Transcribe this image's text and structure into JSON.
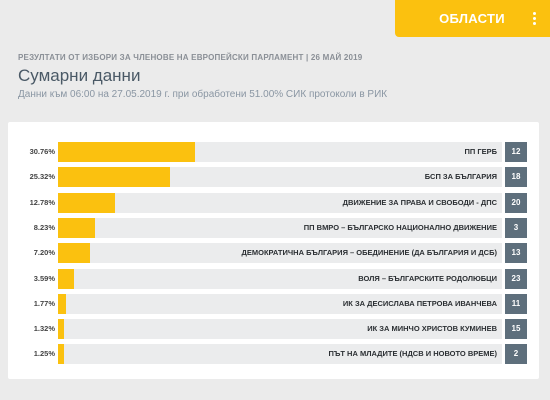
{
  "header": {
    "regions_button": "ОБЛАСТИ",
    "menu_icon": "kebab-menu-icon"
  },
  "election_title": "РЕЗУЛТАТИ ОТ ИЗБОРИ ЗА ЧЛЕНОВЕ НА ЕВРОПЕЙСКИ ПАРЛАМЕНТ | 26 МАЙ 2019",
  "page_title": "Сумарни данни",
  "subtitle": "Данни към 06:00 на 27.05.2019 г. при обработени 51.00% СИК протоколи в РИК",
  "colors": {
    "bar": "#fbc10f",
    "track": "#ebeced",
    "seat_badge": "#5e6f7c"
  },
  "chart_data": {
    "type": "bar",
    "orientation": "horizontal",
    "unit": "%",
    "xlim": [
      0,
      100
    ],
    "categories": [
      "ПП ГЕРБ",
      "БСП ЗА БЪЛГАРИЯ",
      "ДВИЖЕНИЕ ЗА ПРАВА И СВОБОДИ - ДПС",
      "ПП ВМРО – БЪЛГАРСКО НАЦИОНАЛНО ДВИЖЕНИЕ",
      "ДЕМОКРАТИЧНА БЪЛГАРИЯ – ОБЕДИНЕНИЕ (ДА БЪЛГАРИЯ И ДСБ)",
      "ВОЛЯ – БЪЛГАРСКИТЕ РОДОЛЮБЦИ",
      "ИК ЗА ДЕСИСЛАВА ПЕТРОВА ИВАНЧЕВА",
      "ИК ЗА МИНЧО ХРИСТОВ КУМИНЕВ",
      "ПЪТ НА МЛАДИТЕ (НДСВ И НОВОТО ВРЕМЕ)"
    ],
    "values": [
      30.76,
      25.32,
      12.78,
      8.23,
      7.2,
      3.59,
      1.77,
      1.32,
      1.25
    ],
    "labels": [
      "30.76%",
      "25.32%",
      "12.78%",
      "8.23%",
      "7.20%",
      "3.59%",
      "1.77%",
      "1.32%",
      "1.25%"
    ],
    "badges": [
      "12",
      "18",
      "20",
      "3",
      "13",
      "23",
      "11",
      "15",
      "2"
    ]
  }
}
